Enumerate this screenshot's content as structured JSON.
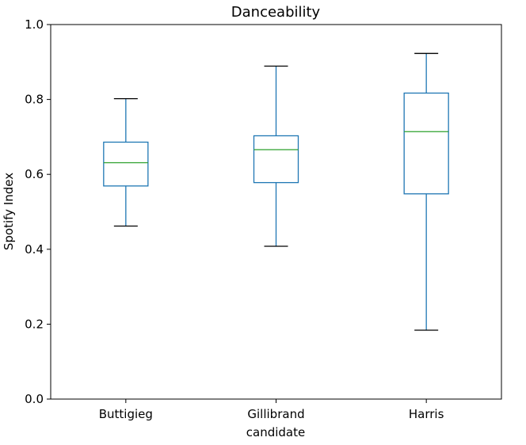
{
  "chart_data": {
    "type": "box",
    "title": "Danceability",
    "xlabel": "candidate",
    "ylabel": "Spotify Index",
    "ylim": [
      0.0,
      1.0
    ],
    "yticks": [
      "0.0",
      "0.2",
      "0.4",
      "0.6",
      "0.8",
      "1.0"
    ],
    "categories": [
      "Buttigieg",
      "Gillibrand",
      "Harris"
    ],
    "boxes": [
      {
        "category": "Buttigieg",
        "whisker_low": 0.462,
        "q1": 0.569,
        "median": 0.631,
        "q3": 0.686,
        "whisker_high": 0.802
      },
      {
        "category": "Gillibrand",
        "whisker_low": 0.408,
        "q1": 0.578,
        "median": 0.666,
        "q3": 0.703,
        "whisker_high": 0.889
      },
      {
        "category": "Harris",
        "whisker_low": 0.184,
        "q1": 0.548,
        "median": 0.714,
        "q3": 0.817,
        "whisker_high": 0.923
      }
    ],
    "grid": false,
    "colors": {
      "box": "#1f77b4",
      "median": "#2ca02c",
      "whisker": "#1f77b4",
      "cap": "#000000"
    }
  }
}
